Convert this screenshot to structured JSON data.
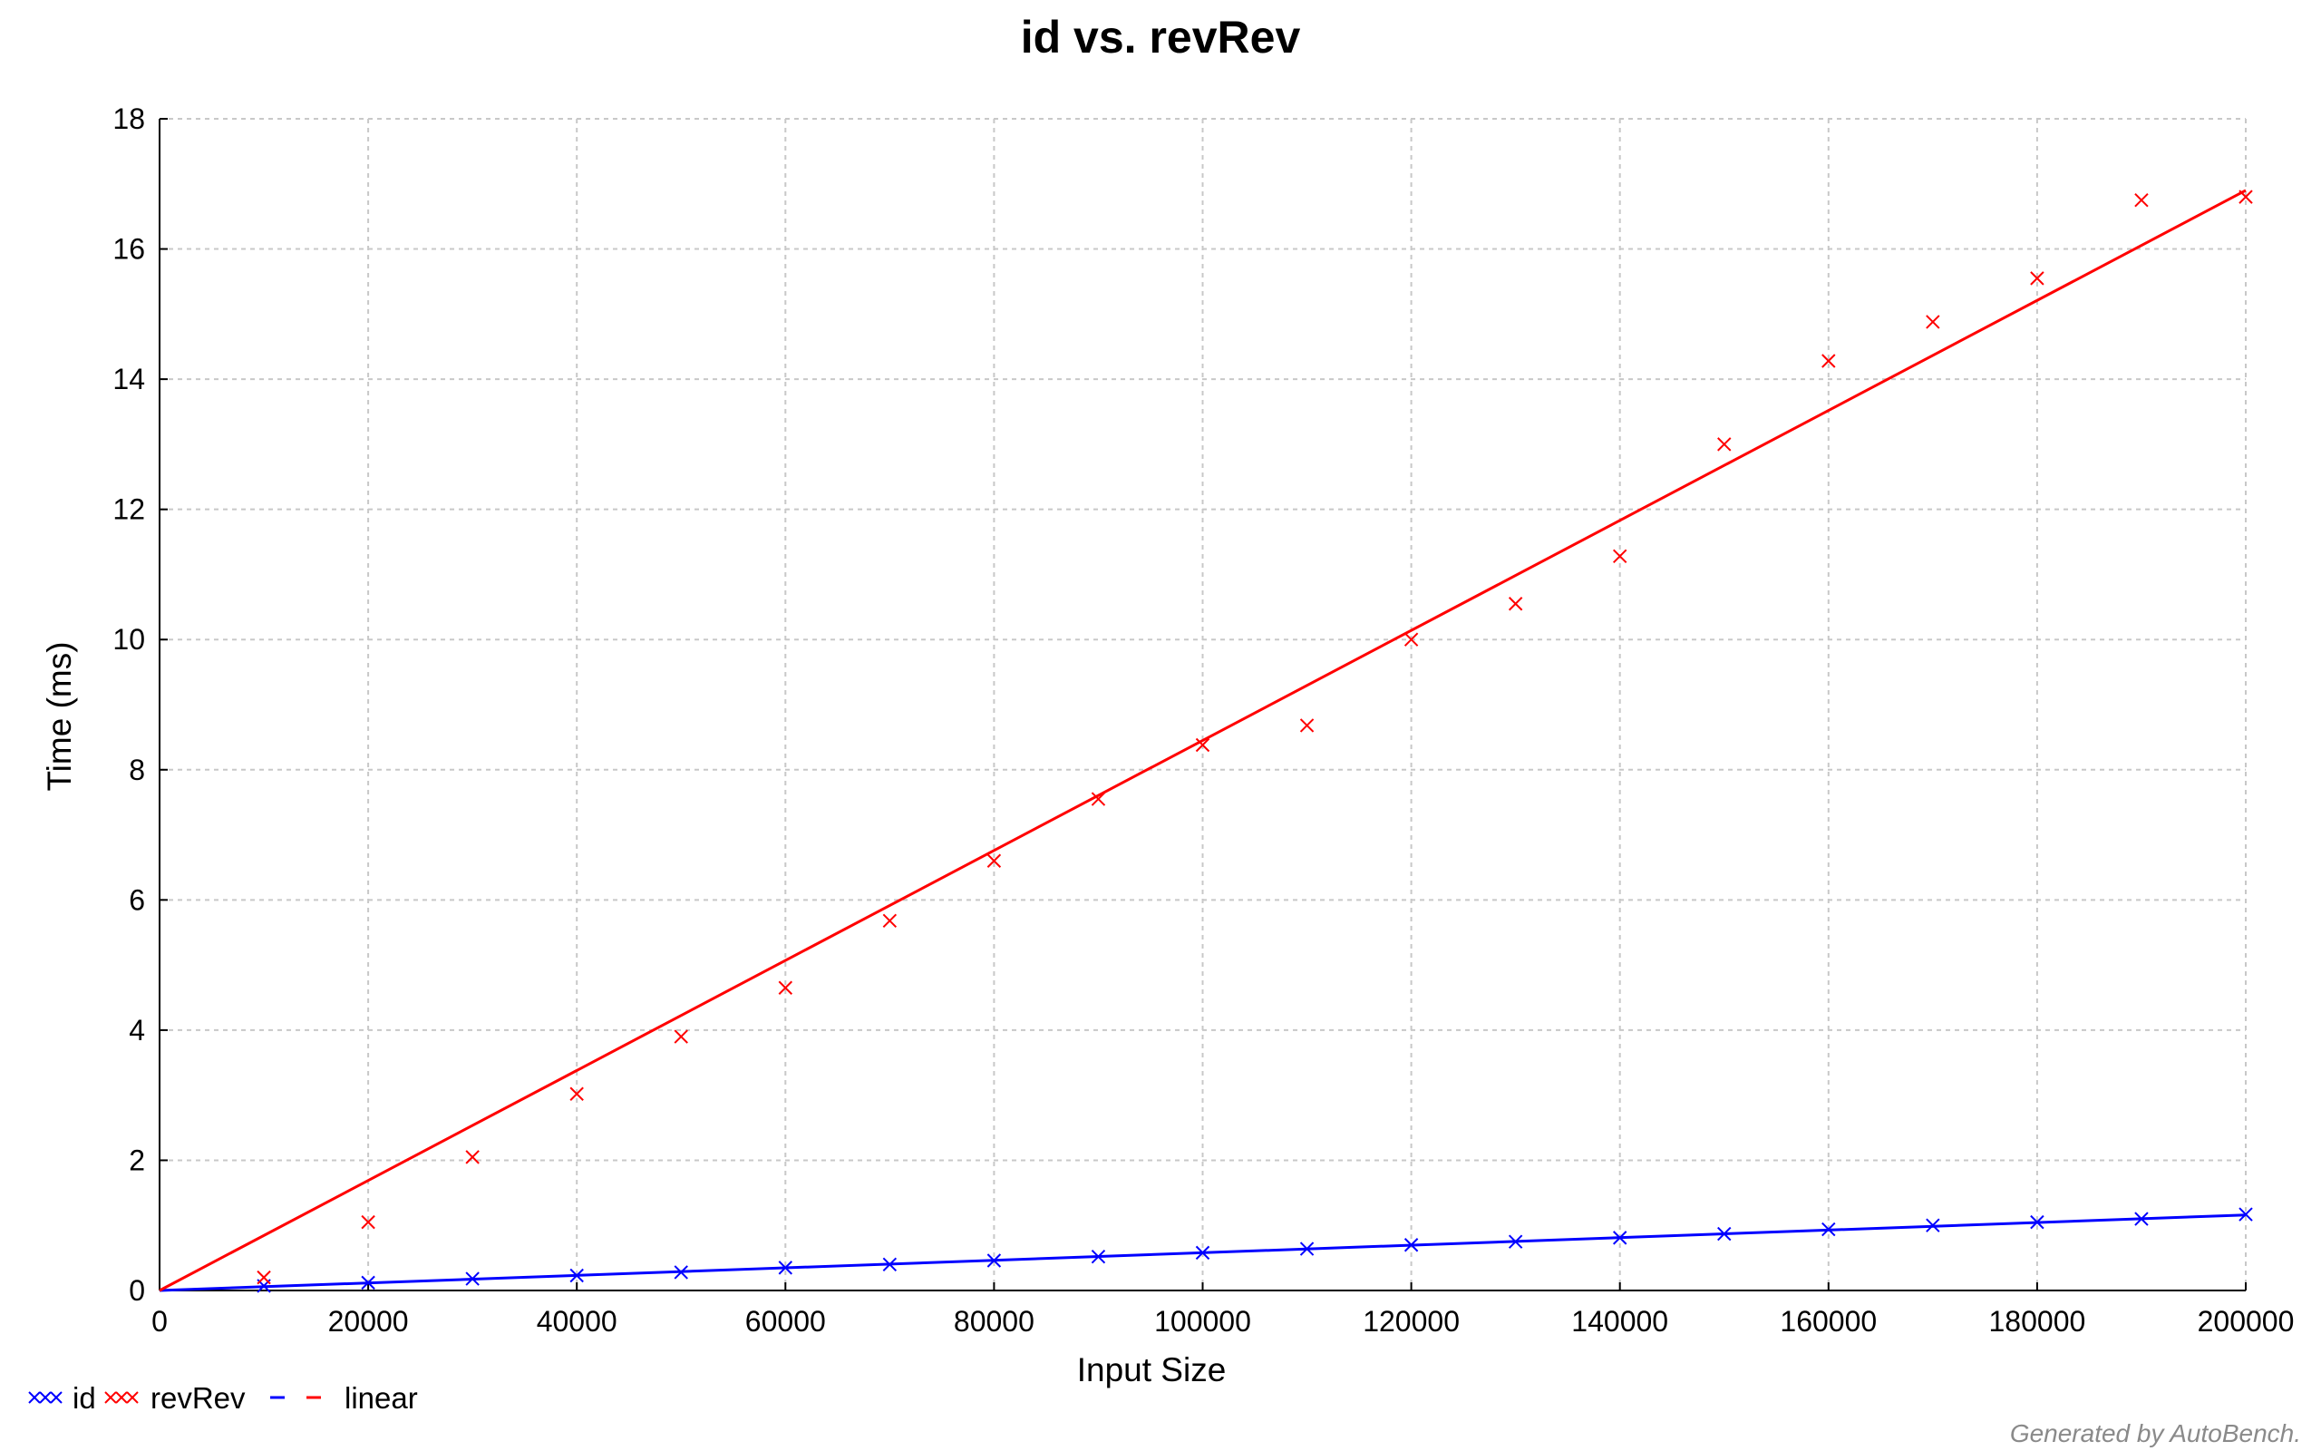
{
  "chart_data": {
    "type": "scatter",
    "title": "id vs. revRev",
    "xlabel": "Input Size",
    "ylabel": "Time (ms)",
    "xlim": [
      0,
      200000
    ],
    "ylim": [
      0,
      18
    ],
    "x_ticks": [
      0,
      20000,
      40000,
      60000,
      80000,
      100000,
      120000,
      140000,
      160000,
      180000,
      200000
    ],
    "y_ticks": [
      0,
      2,
      4,
      6,
      8,
      10,
      12,
      14,
      16,
      18
    ],
    "grid": true,
    "legend_position": "bottom-left",
    "series": [
      {
        "name": "id",
        "color": "#0000ff",
        "marker": "x",
        "x": [
          10000,
          20000,
          30000,
          40000,
          50000,
          60000,
          70000,
          80000,
          90000,
          100000,
          110000,
          120000,
          130000,
          140000,
          150000,
          160000,
          170000,
          180000,
          190000,
          200000
        ],
        "y": [
          0.07,
          0.12,
          0.18,
          0.23,
          0.28,
          0.35,
          0.4,
          0.46,
          0.52,
          0.58,
          0.64,
          0.7,
          0.75,
          0.81,
          0.87,
          0.94,
          1.0,
          1.05,
          1.1,
          1.17
        ]
      },
      {
        "name": "revRev",
        "color": "#ff0000",
        "marker": "x",
        "x": [
          10000,
          20000,
          30000,
          40000,
          50000,
          60000,
          70000,
          80000,
          90000,
          100000,
          110000,
          120000,
          130000,
          140000,
          150000,
          160000,
          170000,
          180000,
          190000,
          200000
        ],
        "y": [
          0.2,
          1.05,
          2.05,
          3.02,
          3.9,
          4.65,
          5.68,
          6.6,
          7.55,
          8.38,
          8.68,
          10.0,
          10.55,
          11.28,
          13.0,
          14.28,
          14.88,
          15.55,
          16.75,
          16.8
        ]
      }
    ],
    "fits": [
      {
        "name": "linear",
        "series": "id",
        "color": "#0000ff",
        "x": [
          0,
          200000
        ],
        "y": [
          0,
          1.16
        ]
      },
      {
        "name": "linear",
        "series": "revRev",
        "color": "#ff0000",
        "x": [
          0,
          200000
        ],
        "y": [
          0,
          16.9
        ]
      }
    ],
    "legend": [
      {
        "label": "id",
        "color": "#0000ff",
        "symbol": "marker"
      },
      {
        "label": "revRev",
        "color": "#ff0000",
        "symbol": "marker"
      },
      {
        "label": "linear",
        "colors": [
          "#0000ff",
          "#ff0000"
        ],
        "symbol": "line"
      }
    ],
    "footer": "Generated by AutoBench."
  }
}
